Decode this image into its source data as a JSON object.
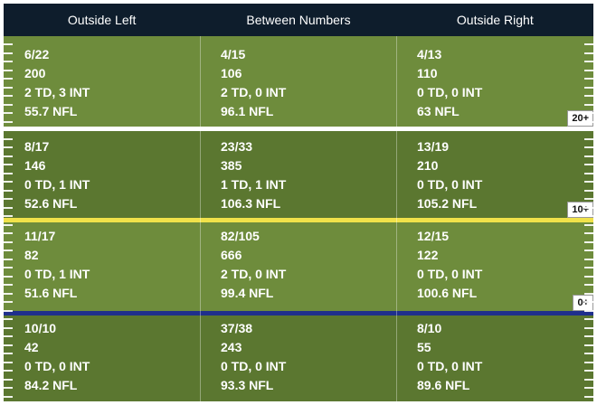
{
  "header": {
    "columns": [
      "Outside Left",
      "Between Numbers",
      "Outside Right"
    ]
  },
  "zones": [
    {
      "badge": "20+",
      "cells": [
        [
          "6/22",
          "200",
          "2 TD, 3 INT",
          "55.7 NFL"
        ],
        [
          "4/15",
          "106",
          "2 TD, 0 INT",
          "96.1 NFL"
        ],
        [
          "4/13",
          "110",
          "0 TD, 0 INT",
          "63 NFL"
        ]
      ]
    },
    {
      "badge": "10+",
      "cells": [
        [
          "8/17",
          "146",
          "0 TD, 1 INT",
          "52.6 NFL"
        ],
        [
          "23/33",
          "385",
          "1 TD, 1 INT",
          "106.3 NFL"
        ],
        [
          "13/19",
          "210",
          "0 TD, 0 INT",
          "105.2 NFL"
        ]
      ]
    },
    {
      "badge": "0+",
      "cells": [
        [
          "11/17",
          "82",
          "0 TD, 1 INT",
          "51.6 NFL"
        ],
        [
          "82/105",
          "666",
          "2 TD, 0 INT",
          "99.4 NFL"
        ],
        [
          "12/15",
          "122",
          "0 TD, 0 INT",
          "100.6 NFL"
        ]
      ]
    },
    {
      "badge": "",
      "cells": [
        [
          "10/10",
          "42",
          "0 TD, 0 INT",
          "84.2 NFL"
        ],
        [
          "37/38",
          "243",
          "0 TD, 0 INT",
          "93.3 NFL"
        ],
        [
          "8/10",
          "55",
          "0 TD, 0 INT",
          "89.6 NFL"
        ]
      ]
    }
  ],
  "colors": {
    "header_bg": "#0e1d2c",
    "field_light": "#6e8c3c",
    "field_dark": "#5b7730",
    "line_white": "#ffffff",
    "line_yellow": "#f0e24a",
    "line_blue": "#1f2f8c"
  }
}
